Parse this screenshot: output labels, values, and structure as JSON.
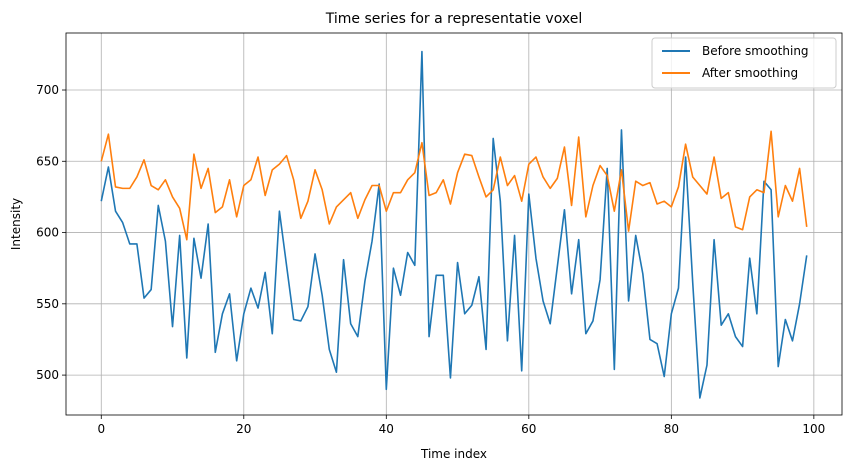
{
  "chart_data": {
    "type": "line",
    "title": "Time series for a representatie voxel",
    "xlabel": "Time index",
    "ylabel": "Intensity",
    "xlim": [
      -4.95,
      103.95
    ],
    "ylim": [
      472,
      740
    ],
    "xticks": [
      0,
      20,
      40,
      60,
      80,
      100
    ],
    "yticks": [
      500,
      550,
      600,
      650,
      700
    ],
    "grid": true,
    "legend_position": "top-right",
    "series": [
      {
        "name": "Before smoothing",
        "color": "#1f77b4",
        "values": [
          622,
          646,
          615,
          607,
          592,
          592,
          554,
          560,
          619,
          594,
          534,
          598,
          512,
          596,
          568,
          606,
          516,
          543,
          557,
          510,
          543,
          561,
          547,
          572,
          529,
          615,
          577,
          539,
          538,
          548,
          585,
          556,
          518,
          502,
          581,
          536,
          527,
          566,
          594,
          634,
          490,
          575,
          556,
          586,
          577,
          727,
          527,
          570,
          570,
          498,
          579,
          543,
          549,
          569,
          518,
          666,
          622,
          524,
          598,
          503,
          627,
          582,
          552,
          536,
          576,
          616,
          557,
          595,
          529,
          538,
          567,
          645,
          504,
          672,
          552,
          598,
          571,
          525,
          522,
          499,
          543,
          561,
          653,
          565,
          484,
          507,
          595,
          535,
          543,
          527,
          520,
          582,
          543,
          636,
          630,
          506,
          539,
          524,
          550,
          584
        ]
      },
      {
        "name": "After smoothing",
        "color": "#ff7f0e",
        "values": [
          650,
          669,
          632,
          631,
          631,
          639,
          651,
          633,
          630,
          637,
          625,
          617,
          595,
          655,
          631,
          645,
          614,
          618,
          637,
          611,
          633,
          637,
          653,
          626,
          644,
          648,
          654,
          637,
          610,
          622,
          644,
          630,
          606,
          618,
          623,
          628,
          610,
          623,
          633,
          633,
          615,
          628,
          628,
          637,
          642,
          663,
          626,
          628,
          637,
          620,
          642,
          655,
          654,
          639,
          625,
          630,
          653,
          633,
          640,
          622,
          648,
          653,
          639,
          631,
          638,
          660,
          619,
          667,
          611,
          633,
          647,
          640,
          615,
          644,
          601,
          636,
          633,
          635,
          620,
          622,
          618,
          632,
          662,
          639,
          633,
          627,
          653,
          624,
          628,
          604,
          602,
          625,
          630,
          628,
          671,
          611,
          633,
          622,
          645,
          604
        ]
      }
    ]
  }
}
